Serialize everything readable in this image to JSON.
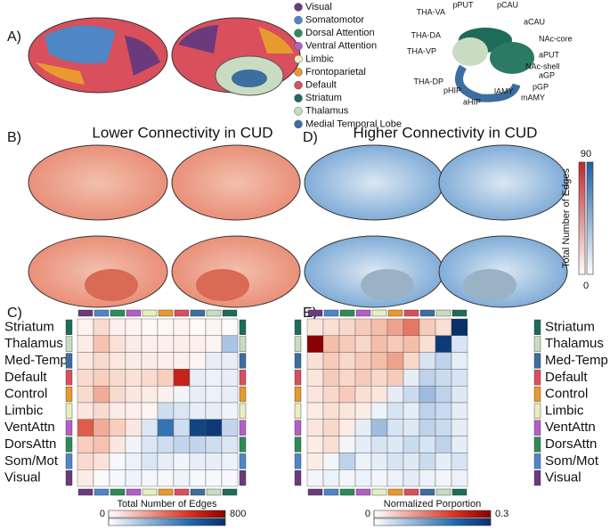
{
  "panels": {
    "a": "A)",
    "b": "B)",
    "c": "C)",
    "d": "D)",
    "e": "E)"
  },
  "legend": [
    {
      "name": "Visual",
      "color": "#6b3a7d"
    },
    {
      "name": "Somatomotor",
      "color": "#4f86c6"
    },
    {
      "name": "Dorsal Attention",
      "color": "#2e8b57"
    },
    {
      "name": "Ventral Attention",
      "color": "#b35fc6"
    },
    {
      "name": "Limbic",
      "color": "#e6efc0"
    },
    {
      "name": "Frontoparietal",
      "color": "#e89a2e"
    },
    {
      "name": "Default",
      "color": "#d94f5c"
    },
    {
      "name": "Striatum",
      "color": "#1f6b5a"
    },
    {
      "name": "Thalamus",
      "color": "#c9dcc2"
    },
    {
      "name": "Medial Temporal Lobe",
      "color": "#3c6e9f"
    }
  ],
  "subcortical": [
    "THA-VA",
    "pPUT",
    "pCAU",
    "aCAU",
    "THA-DA",
    "NAc-core",
    "THA-VP",
    "aPUT",
    "NAc-shell",
    "aGP",
    "THA-DP",
    "pGP",
    "pHIP",
    "lAMY",
    "mAMY",
    "aHIP"
  ],
  "brain_titles": {
    "lower": "Lower Connectivity in CUD",
    "higher": "Higher Connectivity in CUD"
  },
  "side_colorbar": {
    "label": "Total Number of Edges",
    "max": 90,
    "min": 0
  },
  "matrices": [
    {
      "rows": [
        "Striatum",
        "Thalamus",
        "Med-Temp",
        "Default",
        "Control",
        "Limbic",
        "VentAttn",
        "DorsAttn",
        "Som/Mot",
        "Visual"
      ],
      "colorbar_label": "Total Number of Edges",
      "lim": [
        0,
        800
      ],
      "ticks": [
        0,
        800
      ],
      "red": [
        [
          50,
          150,
          60,
          40,
          30,
          30,
          40,
          20,
          40,
          20
        ],
        [
          80,
          250,
          120,
          80,
          60,
          60,
          70,
          60,
          40
        ],
        [
          100,
          150,
          100,
          80,
          80,
          60,
          60,
          40
        ],
        [
          150,
          200,
          150,
          120,
          150,
          200,
          600
        ],
        [
          150,
          300,
          150,
          100,
          80,
          60
        ],
        [
          100,
          150,
          80,
          60,
          40
        ],
        [
          450,
          300,
          200,
          100
        ],
        [
          200,
          250,
          100
        ],
        [
          150,
          120
        ],
        [
          80
        ]
      ],
      "blue": [
        [],
        [
          300
        ],
        [
          100,
          100
        ],
        [
          100,
          80,
          100
        ],
        [
          60,
          100,
          80,
          100
        ],
        [
          200,
          150,
          100,
          100,
          60
        ],
        [
          150,
          500,
          200,
          700,
          750,
          250
        ],
        [
          60,
          150,
          200,
          250,
          250,
          200,
          150
        ],
        [
          40,
          80,
          150,
          100,
          60,
          100,
          100,
          80
        ],
        [
          30,
          40,
          60,
          50,
          40,
          60,
          40,
          40,
          40
        ]
      ]
    },
    {
      "rows": [
        "Striatum",
        "Thalamus",
        "Med-Temp",
        "Default",
        "Control",
        "Limbic",
        "VentAttn",
        "DorsAttn",
        "Som/Mot",
        "Visual"
      ],
      "colorbar_label": "Normalized Porportion",
      "lim": [
        0,
        0.3
      ],
      "ticks": [
        0,
        0.3
      ],
      "red": [
        [
          0.04,
          0.05,
          0.06,
          0.08,
          0.1,
          0.12,
          0.15,
          0.08,
          0.05
        ],
        [
          0.3,
          0.1,
          0.08,
          0.06,
          0.1,
          0.08,
          0.1,
          0.05
        ],
        [
          0.05,
          0.08,
          0.06,
          0.08,
          0.1,
          0.12,
          0.06
        ],
        [
          0.04,
          0.08,
          0.06,
          0.08,
          0.06,
          0.08
        ],
        [
          0.04,
          0.06,
          0.08,
          0.05,
          0.04
        ],
        [
          0.03,
          0.05,
          0.04,
          0.03
        ],
        [
          0.04,
          0.06,
          0.03
        ],
        [
          0.03,
          0.05
        ],
        [
          0.03
        ],
        []
      ],
      "blue": [
        [
          0.3
        ],
        [
          0.28,
          0.06
        ],
        [
          0.06,
          0.1,
          0.04
        ],
        [
          0.04,
          0.1,
          0.08,
          0.06
        ],
        [
          0.04,
          0.08,
          0.12,
          0.1,
          0.05
        ],
        [
          0.03,
          0.06,
          0.04,
          0.1,
          0.08,
          0.04
        ],
        [
          0.04,
          0.12,
          0.06,
          0.05,
          0.1,
          0.08,
          0.04
        ],
        [
          0.02,
          0.04,
          0.06,
          0.05,
          0.08,
          0.06,
          0.1,
          0.04
        ],
        [
          0.02,
          0.1,
          0.03,
          0.04,
          0.06,
          0.05,
          0.08,
          0.04,
          0.06
        ],
        [
          0.02,
          0.03,
          0.02,
          0.03,
          0.02,
          0.03,
          0.04,
          0.03,
          0.02,
          0.03
        ]
      ]
    }
  ]
}
